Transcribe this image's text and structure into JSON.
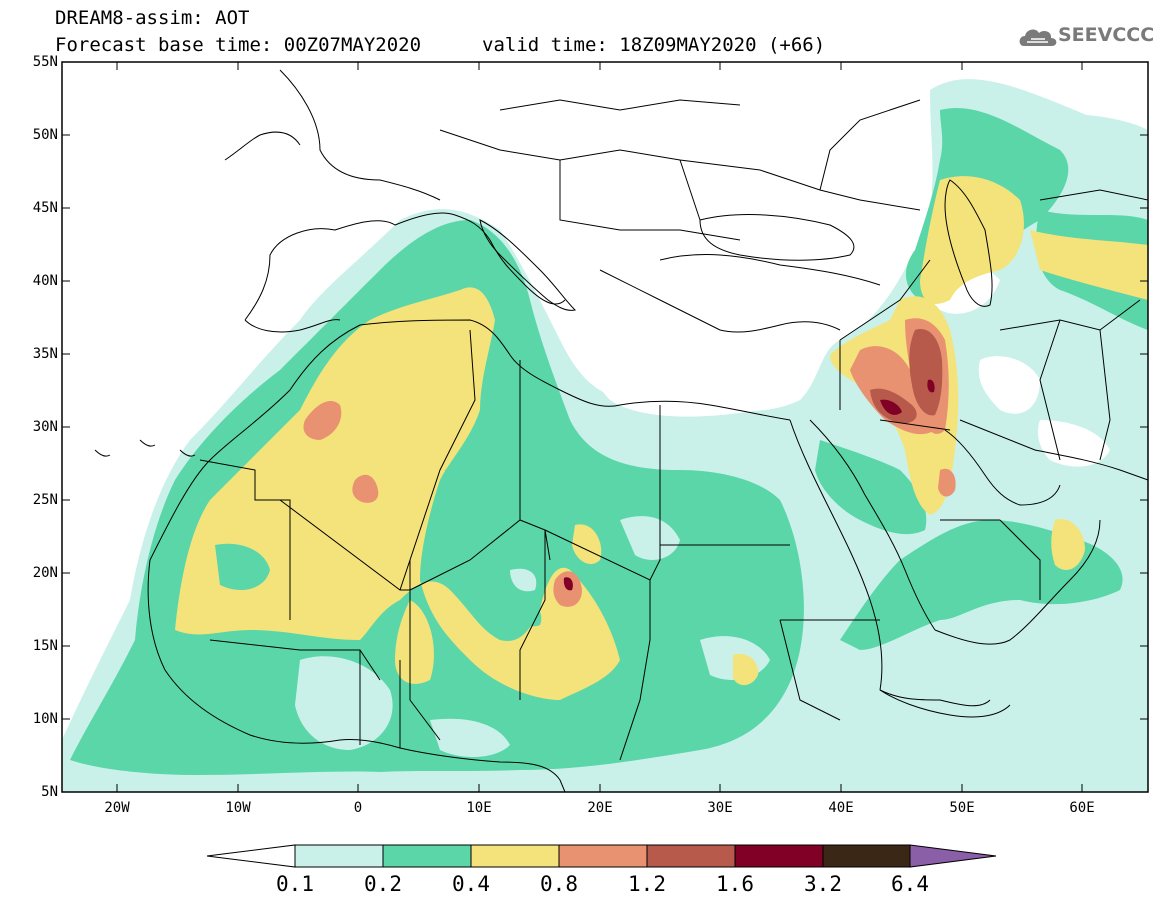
{
  "header": {
    "title": "DREAM8-assim: AOT",
    "base_time": "Forecast base time: 00Z07MAY2020",
    "valid_time": "valid time: 18Z09MAY2020 (+66)",
    "logo_text": "SEEVCCC",
    "logo_icon": "cloud-icon"
  },
  "map": {
    "latitude_labels": [
      "55N",
      "50N",
      "45N",
      "40N",
      "35N",
      "30N",
      "25N",
      "20N",
      "15N",
      "10N",
      "5N"
    ],
    "longitude_labels": [
      "20W",
      "10W",
      "0",
      "10E",
      "20E",
      "30E",
      "40E",
      "50E",
      "60E"
    ],
    "extent": {
      "lon_min": -25,
      "lon_max": 65,
      "lat_min": 5,
      "lat_max": 55
    }
  },
  "legend": {
    "labels": [
      "0.1",
      "0.2",
      "0.4",
      "0.8",
      "1.2",
      "1.6",
      "3.2",
      "6.4"
    ],
    "colors": [
      "#ffffff",
      "#c9f1ea",
      "#5ad6a9",
      "#f4e37a",
      "#e89271",
      "#b75a4c",
      "#800026",
      "#3b2716",
      "#8a5fa8"
    ]
  }
}
